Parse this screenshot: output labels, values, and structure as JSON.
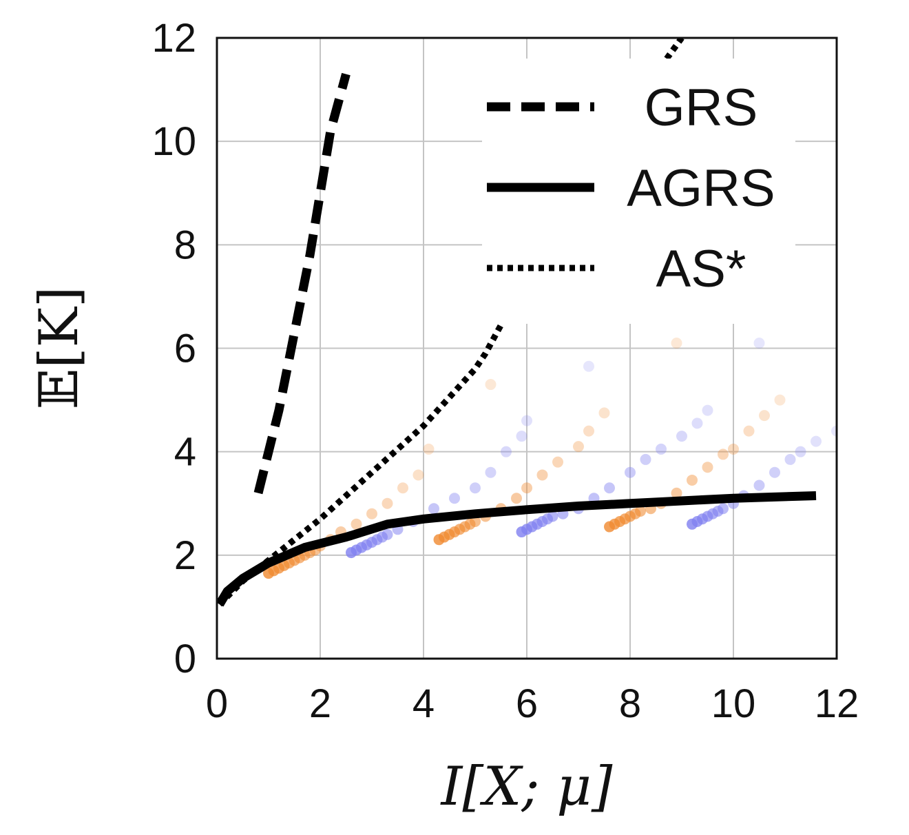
{
  "chart_data": {
    "type": "line",
    "xlabel": "I[X; μ]",
    "ylabel": "𝔼[K]",
    "xlim": [
      0,
      12
    ],
    "ylim": [
      0,
      12
    ],
    "x_ticks": [
      0,
      2,
      4,
      6,
      8,
      10,
      12
    ],
    "y_ticks": [
      0,
      2,
      4,
      6,
      8,
      10,
      12
    ],
    "grid": true,
    "legend_position": "top-right",
    "series": [
      {
        "name": "GRS",
        "style": "dashed",
        "color": "#000000",
        "points": [
          [
            0.8,
            3.2
          ],
          [
            1.2,
            4.8
          ],
          [
            1.5,
            6.3
          ],
          [
            1.8,
            7.8
          ],
          [
            2.0,
            9.0
          ],
          [
            2.2,
            10.2
          ],
          [
            2.5,
            11.3
          ]
        ]
      },
      {
        "name": "AGRS",
        "style": "solid",
        "color": "#000000",
        "points": [
          [
            0.05,
            1.05
          ],
          [
            0.2,
            1.3
          ],
          [
            0.5,
            1.55
          ],
          [
            1.0,
            1.85
          ],
          [
            1.7,
            2.15
          ],
          [
            2.5,
            2.35
          ],
          [
            3.3,
            2.6
          ],
          [
            4.0,
            2.7
          ],
          [
            5.0,
            2.8
          ],
          [
            6.0,
            2.88
          ],
          [
            7.0,
            2.95
          ],
          [
            8.0,
            3.0
          ],
          [
            9.0,
            3.05
          ],
          [
            10.0,
            3.1
          ],
          [
            11.6,
            3.15
          ]
        ]
      },
      {
        "name": "AS*",
        "style": "dotted",
        "color": "#000000",
        "points": [
          [
            0.05,
            1.05
          ],
          [
            0.5,
            1.5
          ],
          [
            1.0,
            1.9
          ],
          [
            2.0,
            2.7
          ],
          [
            3.0,
            3.6
          ],
          [
            4.0,
            4.5
          ],
          [
            5.0,
            5.6
          ],
          [
            5.2,
            5.9
          ],
          [
            5.8,
            7.0
          ],
          [
            6.6,
            8.3
          ],
          [
            7.4,
            9.6
          ],
          [
            8.2,
            10.9
          ],
          [
            9.0,
            12.0
          ]
        ]
      }
    ],
    "scatter_groups": [
      {
        "color": "#f08a30",
        "points": [
          [
            1.0,
            1.65
          ],
          [
            1.1,
            1.7
          ],
          [
            1.2,
            1.75
          ],
          [
            1.3,
            1.8
          ],
          [
            1.4,
            1.85
          ],
          [
            1.5,
            1.9
          ],
          [
            1.6,
            1.95
          ],
          [
            1.7,
            2.0
          ],
          [
            1.8,
            2.05
          ],
          [
            1.9,
            2.1
          ],
          [
            2.0,
            2.18
          ],
          [
            2.2,
            2.3
          ],
          [
            2.4,
            2.45
          ],
          [
            2.7,
            2.6
          ],
          [
            3.0,
            2.8
          ],
          [
            3.3,
            3.0
          ],
          [
            3.6,
            3.3
          ],
          [
            3.9,
            3.55
          ],
          [
            4.1,
            4.05
          ],
          [
            5.3,
            5.3
          ]
        ]
      },
      {
        "color": "#8080f0",
        "points": [
          [
            2.6,
            2.05
          ],
          [
            2.7,
            2.1
          ],
          [
            2.8,
            2.15
          ],
          [
            2.9,
            2.2
          ],
          [
            3.0,
            2.25
          ],
          [
            3.1,
            2.3
          ],
          [
            3.2,
            2.35
          ],
          [
            3.3,
            2.4
          ],
          [
            3.5,
            2.5
          ],
          [
            3.8,
            2.65
          ],
          [
            4.2,
            2.9
          ],
          [
            4.6,
            3.1
          ],
          [
            5.0,
            3.3
          ],
          [
            5.3,
            3.6
          ],
          [
            5.6,
            4.0
          ],
          [
            5.9,
            4.3
          ],
          [
            6.0,
            4.6
          ],
          [
            7.2,
            5.65
          ]
        ]
      },
      {
        "color": "#f08a30",
        "points": [
          [
            4.3,
            2.3
          ],
          [
            4.4,
            2.35
          ],
          [
            4.5,
            2.4
          ],
          [
            4.6,
            2.45
          ],
          [
            4.7,
            2.5
          ],
          [
            4.8,
            2.55
          ],
          [
            4.9,
            2.6
          ],
          [
            5.0,
            2.65
          ],
          [
            5.2,
            2.75
          ],
          [
            5.5,
            2.9
          ],
          [
            5.8,
            3.1
          ],
          [
            6.0,
            3.3
          ],
          [
            6.3,
            3.55
          ],
          [
            6.6,
            3.8
          ],
          [
            7.0,
            4.1
          ],
          [
            7.2,
            4.4
          ],
          [
            7.5,
            4.75
          ],
          [
            8.9,
            6.1
          ]
        ]
      },
      {
        "color": "#8080f0",
        "points": [
          [
            5.9,
            2.45
          ],
          [
            6.0,
            2.5
          ],
          [
            6.1,
            2.55
          ],
          [
            6.2,
            2.6
          ],
          [
            6.3,
            2.65
          ],
          [
            6.4,
            2.7
          ],
          [
            6.5,
            2.75
          ],
          [
            6.7,
            2.8
          ],
          [
            7.0,
            2.9
          ],
          [
            7.3,
            3.1
          ],
          [
            7.6,
            3.3
          ],
          [
            8.0,
            3.6
          ],
          [
            8.3,
            3.85
          ],
          [
            8.6,
            4.05
          ],
          [
            9.0,
            4.3
          ],
          [
            9.3,
            4.55
          ],
          [
            9.5,
            4.8
          ],
          [
            10.5,
            6.1
          ]
        ]
      },
      {
        "color": "#f08a30",
        "points": [
          [
            7.6,
            2.55
          ],
          [
            7.7,
            2.6
          ],
          [
            7.8,
            2.65
          ],
          [
            7.9,
            2.7
          ],
          [
            8.0,
            2.75
          ],
          [
            8.1,
            2.8
          ],
          [
            8.2,
            2.85
          ],
          [
            8.4,
            2.9
          ],
          [
            8.6,
            3.0
          ],
          [
            8.9,
            3.2
          ],
          [
            9.2,
            3.45
          ],
          [
            9.5,
            3.7
          ],
          [
            9.8,
            3.95
          ],
          [
            10.0,
            4.05
          ],
          [
            10.3,
            4.4
          ],
          [
            10.6,
            4.7
          ],
          [
            10.9,
            5.0
          ]
        ]
      },
      {
        "color": "#8080f0",
        "points": [
          [
            9.2,
            2.6
          ],
          [
            9.3,
            2.65
          ],
          [
            9.4,
            2.7
          ],
          [
            9.5,
            2.75
          ],
          [
            9.6,
            2.8
          ],
          [
            9.7,
            2.85
          ],
          [
            9.8,
            2.9
          ],
          [
            10.0,
            3.0
          ],
          [
            10.2,
            3.15
          ],
          [
            10.5,
            3.35
          ],
          [
            10.8,
            3.6
          ],
          [
            11.1,
            3.85
          ],
          [
            11.3,
            4.0
          ],
          [
            11.6,
            4.2
          ],
          [
            12.0,
            4.4
          ]
        ]
      }
    ]
  }
}
